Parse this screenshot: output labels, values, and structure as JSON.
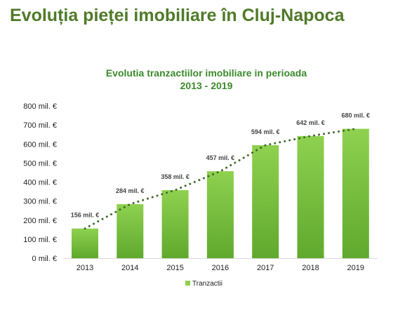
{
  "page": {
    "heading": "Evoluția pieței imobiliare în Cluj-Napoca"
  },
  "colors": {
    "heading": "#4f7a28",
    "title": "#3a8a2a",
    "bar_top": "#8fd14f",
    "bar_bottom": "#5fa92e",
    "trendline": "#3f6b2a"
  },
  "chart_data": {
    "type": "bar",
    "title_line1": "Evolutia tranzactiilor imobiliare in perioada",
    "title_line2": "2013 - 2019",
    "categories": [
      "2013",
      "2014",
      "2015",
      "2016",
      "2017",
      "2018",
      "2019"
    ],
    "series": [
      {
        "name": "Tranzactii",
        "values": [
          156,
          284,
          358,
          457,
          594,
          642,
          680
        ]
      }
    ],
    "data_labels": [
      "156 mil. €",
      "284 mil. €",
      "358 mil. €",
      "457 mil. €",
      "594 mil. €",
      "642 mil. €",
      "680 mil. €"
    ],
    "y_tick_labels": [
      "0 mil. €",
      "100 mil. €",
      "200 mil. €",
      "300 mil. €",
      "400 mil. €",
      "500 mil. €",
      "600 mil. €",
      "700 mil. €",
      "800 mil. €"
    ],
    "ylim": [
      0,
      800
    ],
    "y_step": 100,
    "grid": false,
    "trendline": "dotted",
    "legend_position": "bottom"
  }
}
